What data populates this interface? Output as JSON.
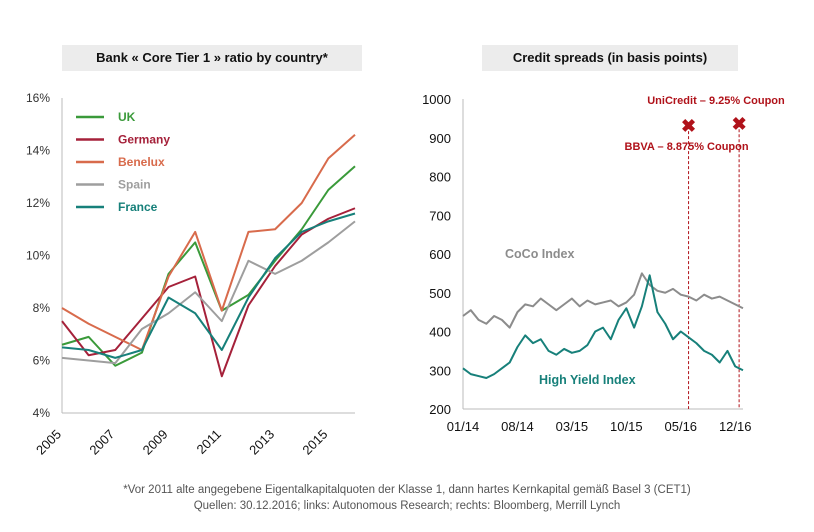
{
  "left": {
    "title": "Bank « Core Tier 1 » ratio by country*",
    "chart_data": {
      "type": "line",
      "x": [
        2005,
        2006,
        2007,
        2008,
        2009,
        2010,
        2011,
        2012,
        2013,
        2014,
        2015,
        2016
      ],
      "xticks": [
        "2005",
        "2007",
        "2009",
        "2011",
        "2013",
        "2015"
      ],
      "yticks": [
        "16%",
        "14%",
        "12%",
        "10%",
        "8%",
        "6%",
        "4%"
      ],
      "ylim": [
        4,
        16
      ],
      "legend_position": "top-left",
      "series": [
        {
          "name": "UK",
          "color": "#3a9a3a",
          "values": [
            6.6,
            6.9,
            5.8,
            6.3,
            9.3,
            10.5,
            7.9,
            8.5,
            9.8,
            11.0,
            12.5,
            13.4
          ]
        },
        {
          "name": "Germany",
          "color": "#a5213a",
          "values": [
            7.5,
            6.2,
            6.4,
            7.6,
            8.8,
            9.2,
            5.4,
            8.1,
            9.6,
            10.8,
            11.4,
            11.8
          ]
        },
        {
          "name": "Benelux",
          "color": "#d86b4c",
          "values": [
            8.0,
            7.4,
            6.9,
            6.4,
            9.2,
            10.9,
            7.9,
            10.9,
            11.0,
            12.0,
            13.7,
            14.6
          ]
        },
        {
          "name": "Spain",
          "color": "#9e9e9e",
          "values": [
            6.1,
            6.0,
            5.9,
            7.2,
            7.8,
            8.6,
            7.5,
            9.8,
            9.3,
            9.8,
            10.5,
            11.3
          ]
        },
        {
          "name": "France",
          "color": "#17807a",
          "values": [
            6.5,
            6.4,
            6.1,
            6.4,
            8.4,
            7.8,
            6.4,
            8.4,
            9.9,
            10.9,
            11.3,
            11.6
          ]
        }
      ]
    }
  },
  "right": {
    "title": "Credit spreads (in basis points)",
    "chart_data": {
      "type": "line",
      "xticks": [
        "01/14",
        "08/14",
        "03/15",
        "10/15",
        "05/16",
        "12/16"
      ],
      "yticks": [
        "1000",
        "900",
        "800",
        "700",
        "600",
        "500",
        "400",
        "300",
        "200"
      ],
      "ylim": [
        200,
        1000
      ],
      "xlim_months": [
        0,
        36
      ],
      "series": [
        {
          "name": "CoCo Index",
          "color": "#8c8c8c",
          "x": [
            0,
            1,
            2,
            3,
            4,
            5,
            6,
            7,
            8,
            9,
            10,
            11,
            12,
            13,
            14,
            15,
            16,
            17,
            18,
            19,
            20,
            21,
            22,
            23,
            24,
            25,
            26,
            27,
            28,
            29,
            30,
            31,
            32,
            33,
            34,
            35,
            36
          ],
          "values": [
            440,
            455,
            430,
            420,
            440,
            430,
            410,
            450,
            470,
            465,
            485,
            470,
            455,
            470,
            485,
            465,
            480,
            470,
            475,
            480,
            465,
            475,
            495,
            550,
            520,
            505,
            500,
            510,
            495,
            490,
            480,
            495,
            485,
            490,
            480,
            470,
            460
          ]
        },
        {
          "name": "High Yield Index",
          "color": "#17807a",
          "x": [
            0,
            1,
            2,
            3,
            4,
            5,
            6,
            7,
            8,
            9,
            10,
            11,
            12,
            13,
            14,
            15,
            16,
            17,
            18,
            19,
            20,
            21,
            22,
            23,
            24,
            25,
            26,
            27,
            28,
            29,
            30,
            31,
            32,
            33,
            34,
            35,
            36
          ],
          "values": [
            305,
            290,
            285,
            280,
            290,
            305,
            320,
            360,
            390,
            370,
            380,
            350,
            340,
            355,
            345,
            350,
            365,
            400,
            410,
            380,
            430,
            460,
            410,
            465,
            545,
            450,
            420,
            380,
            400,
            385,
            370,
            350,
            340,
            320,
            350,
            310,
            300
          ]
        }
      ],
      "annotations": [
        {
          "label": "BBVA – 8.875% Coupon",
          "x": 29,
          "y": 930,
          "color": "#b0121a"
        },
        {
          "label": "UniCredit – 9.25% Coupon",
          "x": 35.5,
          "y": 935,
          "color": "#b0121a"
        }
      ]
    }
  },
  "footnote_line1": "*Vor 2011 alte angegebene Eigentalkapitalquoten der Klasse 1, dann hartes Kernkapital gemäß Basel 3 (CET1)",
  "footnote_line2": "Quellen: 30.12.2016; links: Autonomous Research; rechts: Bloomberg, Merrill Lynch"
}
